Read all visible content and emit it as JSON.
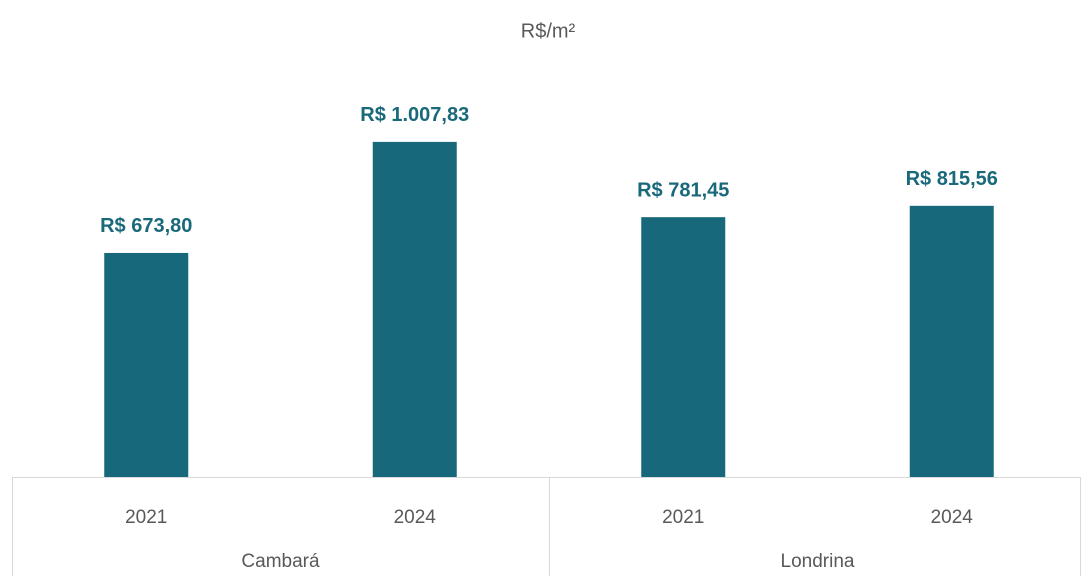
{
  "chart_data": {
    "type": "bar",
    "title": "R$/m²",
    "categories": [
      "2021",
      "2024",
      "2021",
      "2024"
    ],
    "groups": [
      {
        "name": "Cambará",
        "span": 2
      },
      {
        "name": "Londrina",
        "span": 2
      }
    ],
    "values": [
      673.8,
      1007.83,
      781.45,
      815.56
    ],
    "value_labels": [
      "R$ 673,80",
      "R$ 1.007,83",
      "R$ 781,45",
      "R$ 815,56"
    ],
    "color": "#17687a",
    "label_color": "#19697b",
    "ylim": [
      0,
      1200
    ],
    "grid": false
  }
}
